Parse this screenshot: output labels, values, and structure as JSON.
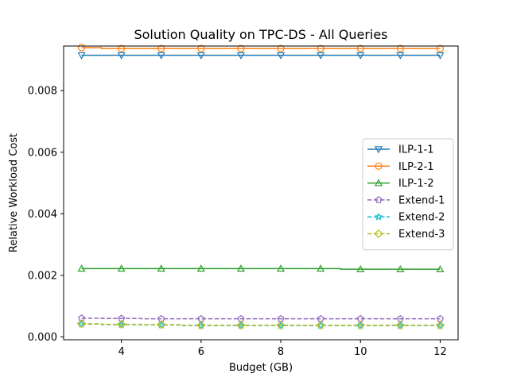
{
  "chart_data": {
    "type": "line",
    "title": "Solution Quality on TPC-DS - All Queries",
    "xlabel": "Budget (GB)",
    "ylabel": "Relative Workload Cost",
    "xlim": [
      2.55,
      12.45
    ],
    "ylim": [
      -9e-05,
      0.00945
    ],
    "xticks": [
      4,
      6,
      8,
      10,
      12
    ],
    "xtick_labels": [
      "4",
      "6",
      "8",
      "10",
      "12"
    ],
    "yticks": [
      0.0,
      0.002,
      0.004,
      0.006,
      0.008
    ],
    "ytick_labels": [
      "0.000",
      "0.002",
      "0.004",
      "0.006",
      "0.008"
    ],
    "grid": false,
    "legend_position": "center-right",
    "x": [
      3,
      4,
      5,
      6,
      7,
      8,
      9,
      10,
      11,
      12
    ],
    "series": [
      {
        "name": "ILP-1-1",
        "color": "#1f77b4",
        "linestyle": "solid",
        "marker": "triangle-down",
        "values": [
          0.00915,
          0.00915,
          0.00915,
          0.00915,
          0.00915,
          0.00915,
          0.00915,
          0.00915,
          0.00915,
          0.00915
        ]
      },
      {
        "name": "ILP-2-1",
        "color": "#ff7f0e",
        "linestyle": "solid",
        "marker": "circle",
        "values": [
          0.0094,
          0.00937,
          0.00937,
          0.00937,
          0.00937,
          0.00937,
          0.00937,
          0.00937,
          0.00937,
          0.00937
        ]
      },
      {
        "name": "ILP-1-2",
        "color": "#2ca02c",
        "linestyle": "solid",
        "marker": "triangle-up",
        "values": [
          0.00222,
          0.00222,
          0.00222,
          0.00222,
          0.00222,
          0.00222,
          0.00222,
          0.0022,
          0.0022,
          0.0022
        ]
      },
      {
        "name": "Extend-1",
        "color": "#9467bd",
        "linestyle": "dashed",
        "marker": "pentagon",
        "values": [
          0.00061,
          0.0006,
          0.00059,
          0.00059,
          0.00059,
          0.00059,
          0.00059,
          0.00059,
          0.00059,
          0.00059
        ]
      },
      {
        "name": "Extend-2",
        "color": "#17becf",
        "linestyle": "dashed",
        "marker": "star",
        "values": [
          0.00042,
          0.0004,
          0.00039,
          0.00037,
          0.00037,
          0.00037,
          0.00037,
          0.00037,
          0.00037,
          0.00037
        ]
      },
      {
        "name": "Extend-3",
        "color": "#bcbd22",
        "linestyle": "dashed",
        "marker": "diamond",
        "values": [
          0.00043,
          0.00041,
          0.0004,
          0.00038,
          0.00038,
          0.00038,
          0.00038,
          0.00038,
          0.00038,
          0.00038
        ]
      }
    ]
  }
}
